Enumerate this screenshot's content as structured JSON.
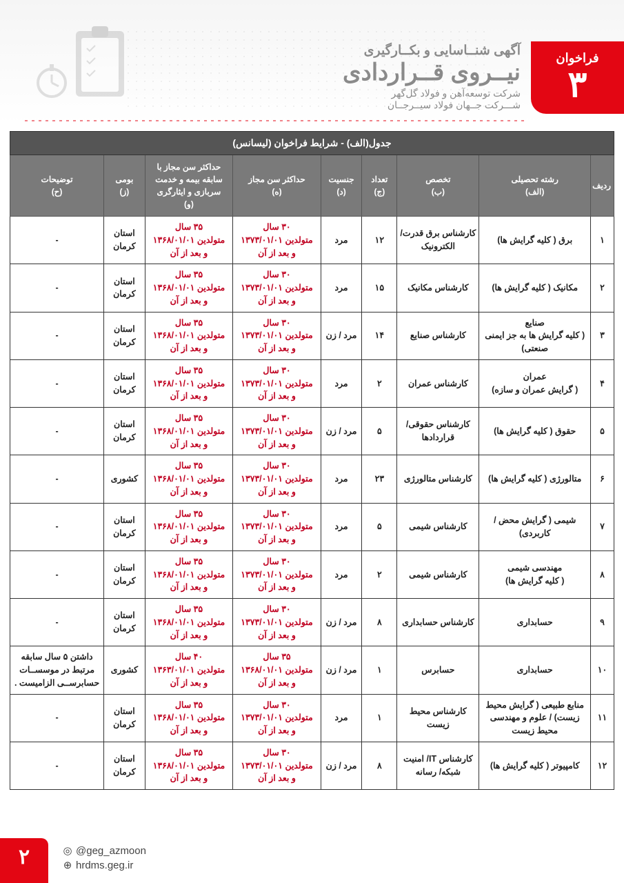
{
  "header": {
    "badge_label": "فراخوان",
    "badge_number": "۳",
    "title_line1": "آگهی شنــاسایی و بکــارگیری",
    "title_line2": "نیــروی قــراردادی",
    "title_line3": "شرکت توسعه‌آهن و فولاد گل‌گهر",
    "title_line4": "شـــرکت جــهان فولاد سیــرجــان"
  },
  "table": {
    "caption": "جدول(الف) - شرایط فراخوان (لیسانس)",
    "columns": {
      "row": "ردیف",
      "field": "رشته تحصیلی\n(الف)",
      "spec": "تخصص\n(ب)",
      "count": "تعداد\n(ج)",
      "gender": "جنسیت\n(د)",
      "age1": "حداکثر سن مجاز\n(ه)",
      "age2": "حداکثر سن مجاز با سابقه بیمه و خدمت سربازی و ایثارگری\n(و)",
      "native": "بومی\n(ز)",
      "notes": "توضیحات\n(ح)"
    },
    "age_text_30": "۳۰ سال\nمتولدین ۱۳۷۳/۰۱/۰۱\nو بعد از آن",
    "age_text_35": "۳۵ سال\nمتولدین ۱۳۶۸/۰۱/۰۱\nو بعد از آن",
    "age_text_35b": "۳۵ سال\nمتولدین ۱۳۶۸/۰۱/۰۱\nو بعد از آن",
    "age_text_40": "۴۰ سال\nمتولدین ۱۳۶۳/۰۱/۰۱\nو بعد از آن",
    "native_kerman": "استان کرمان",
    "native_country": "کشوری",
    "rows": [
      {
        "n": "۱",
        "field": "برق ( کلیه گرایش ها)",
        "spec": "کارشناس برق قدرت/الکترونیک",
        "count": "۱۲",
        "gender": "مرد",
        "age1": "30",
        "age2": "35",
        "native": "kerman",
        "notes": "-"
      },
      {
        "n": "۲",
        "field": "مکانیک ( کلیه گرایش ها)",
        "spec": "کارشناس مکانیک",
        "count": "۱۵",
        "gender": "مرد",
        "age1": "30",
        "age2": "35",
        "native": "kerman",
        "notes": "-"
      },
      {
        "n": "۳",
        "field": "صنایع\n( کلیه گرایش ها به جز ایمنی صنعتی)",
        "spec": "کارشناس صنایع",
        "count": "۱۴",
        "gender": "مرد / زن",
        "age1": "30",
        "age2": "35",
        "native": "kerman",
        "notes": "-"
      },
      {
        "n": "۴",
        "field": "عمران\n( گرایش عمران و سازه)",
        "spec": "کارشناس عمران",
        "count": "۲",
        "gender": "مرد",
        "age1": "30",
        "age2": "35",
        "native": "kerman",
        "notes": "-"
      },
      {
        "n": "۵",
        "field": "حقوق ( کلیه گرایش ها)",
        "spec": "کارشناس حقوقی/قراردادها",
        "count": "۵",
        "gender": "مرد / زن",
        "age1": "30",
        "age2": "35",
        "native": "kerman",
        "notes": "-"
      },
      {
        "n": "۶",
        "field": "متالورژی ( کلیه گرایش ها)",
        "spec": "کارشناس متالورژی",
        "count": "۲۳",
        "gender": "مرد",
        "age1": "30",
        "age2": "35",
        "native": "country",
        "notes": "-"
      },
      {
        "n": "۷",
        "field": "شیمی ( گرایش محض / کاربردی)",
        "spec": "کارشناس شیمی",
        "count": "۵",
        "gender": "مرد",
        "age1": "30",
        "age2": "35",
        "native": "kerman",
        "notes": "-"
      },
      {
        "n": "۸",
        "field": "مهندسی شیمی\n( کلیه گرایش ها)",
        "spec": "کارشناس شیمی",
        "count": "۲",
        "gender": "مرد",
        "age1": "30",
        "age2": "35",
        "native": "kerman",
        "notes": "-"
      },
      {
        "n": "۹",
        "field": "حسابداری",
        "spec": "کارشناس حسابداری",
        "count": "۸",
        "gender": "مرد / زن",
        "age1": "30",
        "age2": "35",
        "native": "kerman",
        "notes": "-"
      },
      {
        "n": "۱۰",
        "field": "حسابداری",
        "spec": "حسابرس",
        "count": "۱",
        "gender": "مرد / زن",
        "age1": "35b",
        "age2": "40",
        "native": "country",
        "notes": "داشتن ۵ سال سابقه مرتبط در موسســات حسابرســی الزامیست ."
      },
      {
        "n": "۱۱",
        "field": "منابع طبیعی ( گرایش محیط زیست) / علوم و مهندسی محیط زیست",
        "spec": "کارشناس محیط زیست",
        "count": "۱",
        "gender": "مرد",
        "age1": "30",
        "age2": "35",
        "native": "kerman",
        "notes": "-"
      },
      {
        "n": "۱۲",
        "field": "کامپیوتر ( کلیه گرایش ها)",
        "spec": "کارشناس IT/ امنیت شبکه/ رسانه",
        "count": "۸",
        "gender": "مرد / زن",
        "age1": "30",
        "age2": "35",
        "native": "kerman",
        "notes": "-"
      }
    ]
  },
  "footer": {
    "page": "۲",
    "instagram": "@geg_azmoon",
    "website": "hrdms.geg.ir"
  }
}
